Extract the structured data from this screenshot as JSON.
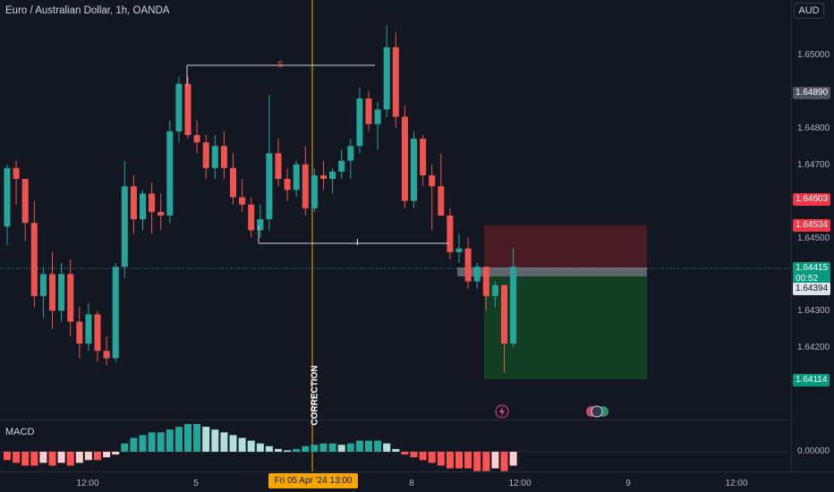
{
  "header": {
    "title": "Euro / Australian Dollar, 1h, OANDA",
    "currency": "AUD"
  },
  "indicator": {
    "label": "MACD",
    "zero_label": "0.00000"
  },
  "price_axis": {
    "ticks": [
      "1.65000",
      "1.64800",
      "1.64700",
      "1.64500",
      "1.64300",
      "1.64200"
    ],
    "badges": {
      "p1": "1.64890",
      "p2": "1.64603",
      "p3": "1.64534",
      "last": "1.64415",
      "countdown": "00:52",
      "p5": "1.64394",
      "p6": "1.64114"
    }
  },
  "time_axis": {
    "labels": [
      "12:00",
      "5",
      "8",
      "12:00",
      "9",
      "12:00"
    ],
    "cursor_label": "Fri 05 Apr '24   13:00"
  },
  "annotations": {
    "top_label": "S",
    "bottom_label": "I",
    "vertical_label": "CORRECTION"
  },
  "colors": {
    "up": "#26a69a",
    "down": "#ef5350",
    "bg": "#131722"
  },
  "icons": [
    "lightning-icon",
    "earnings-icon"
  ],
  "chart_data": {
    "type": "candlestick",
    "title": "Euro / Australian Dollar, 1h, OANDA",
    "ylim": [
      1.6407,
      1.6512
    ],
    "x_labels": [
      "12:00",
      "5",
      "8",
      "12:00",
      "9",
      "12:00"
    ],
    "candles": [
      [
        1.6453,
        1.647,
        1.6448,
        1.6469
      ],
      [
        1.6469,
        1.6471,
        1.6459,
        1.6466
      ],
      [
        1.6466,
        1.6466,
        1.6449,
        1.6454
      ],
      [
        1.6454,
        1.646,
        1.6431,
        1.6434
      ],
      [
        1.6434,
        1.6442,
        1.6428,
        1.644
      ],
      [
        1.644,
        1.6446,
        1.6425,
        1.643
      ],
      [
        1.643,
        1.6443,
        1.6427,
        1.644
      ],
      [
        1.644,
        1.6444,
        1.6423,
        1.6427
      ],
      [
        1.6427,
        1.6431,
        1.6417,
        1.6421
      ],
      [
        1.6421,
        1.6432,
        1.6419,
        1.6429
      ],
      [
        1.6429,
        1.643,
        1.6416,
        1.6419
      ],
      [
        1.6419,
        1.6423,
        1.6415,
        1.6417
      ],
      [
        1.6417,
        1.6443,
        1.6416,
        1.6442
      ],
      [
        1.6442,
        1.6471,
        1.6439,
        1.6464
      ],
      [
        1.6464,
        1.6467,
        1.6451,
        1.6455
      ],
      [
        1.6455,
        1.6463,
        1.6452,
        1.6462
      ],
      [
        1.6462,
        1.6465,
        1.6451,
        1.6457
      ],
      [
        1.6457,
        1.6462,
        1.6452,
        1.6456
      ],
      [
        1.6456,
        1.6482,
        1.6454,
        1.6479
      ],
      [
        1.6479,
        1.6494,
        1.6476,
        1.6492
      ],
      [
        1.6492,
        1.6494,
        1.6477,
        1.6478
      ],
      [
        1.6478,
        1.6482,
        1.6473,
        1.6476
      ],
      [
        1.6476,
        1.6478,
        1.6466,
        1.6469
      ],
      [
        1.6469,
        1.6478,
        1.6466,
        1.6475
      ],
      [
        1.6475,
        1.6479,
        1.6466,
        1.6469
      ],
      [
        1.6469,
        1.6473,
        1.6459,
        1.6461
      ],
      [
        1.6461,
        1.6466,
        1.6457,
        1.6459
      ],
      [
        1.6459,
        1.6461,
        1.645,
        1.6452
      ],
      [
        1.6452,
        1.6459,
        1.645,
        1.6455
      ],
      [
        1.6455,
        1.6489,
        1.6452,
        1.6473
      ],
      [
        1.6473,
        1.6477,
        1.6464,
        1.6466
      ],
      [
        1.6466,
        1.6469,
        1.646,
        1.6463
      ],
      [
        1.6463,
        1.6471,
        1.6461,
        1.647
      ],
      [
        1.647,
        1.6475,
        1.6456,
        1.6458
      ],
      [
        1.6458,
        1.6469,
        1.6457,
        1.6467
      ],
      [
        1.6467,
        1.6471,
        1.6463,
        1.6466
      ],
      [
        1.6466,
        1.6469,
        1.6462,
        1.6468
      ],
      [
        1.6468,
        1.6474,
        1.6466,
        1.6471
      ],
      [
        1.6471,
        1.6477,
        1.6466,
        1.6475
      ],
      [
        1.6475,
        1.6491,
        1.6473,
        1.6488
      ],
      [
        1.6488,
        1.649,
        1.6479,
        1.6481
      ],
      [
        1.6481,
        1.6487,
        1.6474,
        1.6485
      ],
      [
        1.6485,
        1.6508,
        1.6483,
        1.6502
      ],
      [
        1.6502,
        1.6506,
        1.648,
        1.6483
      ],
      [
        1.6483,
        1.6486,
        1.6458,
        1.646
      ],
      [
        1.646,
        1.6479,
        1.6458,
        1.6477
      ],
      [
        1.6477,
        1.6478,
        1.6464,
        1.6467
      ],
      [
        1.6467,
        1.647,
        1.6452,
        1.6464
      ],
      [
        1.6464,
        1.6473,
        1.6456,
        1.6456
      ],
      [
        1.6456,
        1.6458,
        1.6444,
        1.6446
      ],
      [
        1.6446,
        1.6451,
        1.6443,
        1.6447
      ],
      [
        1.6447,
        1.645,
        1.6436,
        1.6438
      ],
      [
        1.6438,
        1.6443,
        1.6436,
        1.6442
      ],
      [
        1.6442,
        1.6442,
        1.643,
        1.6434
      ],
      [
        1.6434,
        1.6438,
        1.6431,
        1.6437
      ],
      [
        1.6437,
        1.6437,
        1.6413,
        1.6421
      ],
      [
        1.6421,
        1.6447,
        1.642,
        1.6442
      ]
    ],
    "macd_histogram": [
      -3,
      -4,
      -5,
      -5,
      -4,
      -5,
      -4,
      -5,
      -4,
      -3,
      -3,
      -2,
      -1,
      3,
      5,
      6,
      7,
      7,
      8,
      9,
      10,
      10,
      9,
      8,
      7,
      6,
      5,
      4,
      3,
      2,
      1,
      0.5,
      1,
      2,
      2.5,
      3,
      3,
      2.5,
      3,
      4,
      4,
      4,
      3,
      1,
      -1,
      -2,
      -3,
      -4,
      -5,
      -6,
      -6,
      -6,
      -7,
      -7,
      -6,
      -7,
      -5
    ],
    "position": {
      "entry": 1.64415,
      "stop": 1.64534,
      "target": 1.64114
    }
  }
}
